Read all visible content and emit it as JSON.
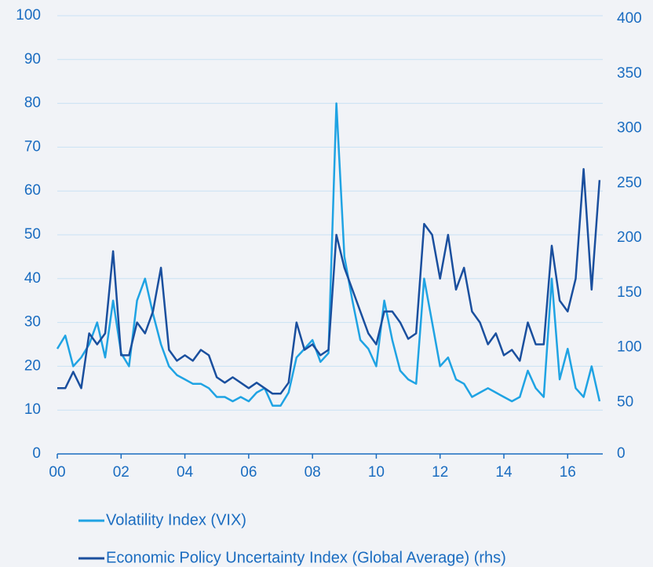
{
  "chart_data": {
    "type": "line",
    "x": [
      0,
      0.25,
      0.5,
      0.75,
      1,
      1.25,
      1.5,
      1.75,
      2,
      2.25,
      2.5,
      2.75,
      3,
      3.25,
      3.5,
      3.75,
      4,
      4.25,
      4.5,
      4.75,
      5,
      5.25,
      5.5,
      5.75,
      6,
      6.25,
      6.5,
      6.75,
      7,
      7.25,
      7.5,
      7.75,
      8,
      8.25,
      8.5,
      8.75,
      9,
      9.25,
      9.5,
      9.75,
      10,
      10.25,
      10.5,
      10.75,
      11,
      11.25,
      11.5,
      11.75,
      12,
      12.25,
      12.5,
      12.75,
      13,
      13.25,
      13.5,
      13.75,
      14,
      14.25,
      14.5,
      14.75,
      15,
      15.25,
      15.5,
      15.75,
      16,
      16.25,
      16.5,
      16.75,
      17
    ],
    "series": [
      {
        "name": "Volatility Index (VIX)",
        "color": "#1fa3e3",
        "values": [
          24,
          27,
          20,
          22,
          25,
          30,
          22,
          35,
          23,
          20,
          35,
          40,
          32,
          25,
          20,
          18,
          17,
          16,
          16,
          15,
          13,
          13,
          12,
          13,
          12,
          14,
          15,
          11,
          11,
          14,
          22,
          24,
          26,
          21,
          23,
          80,
          45,
          35,
          26,
          24,
          20,
          35,
          26,
          19,
          17,
          16,
          40,
          30,
          20,
          22,
          17,
          16,
          13,
          14,
          15,
          14,
          13,
          12,
          13,
          19,
          15,
          13,
          40,
          17,
          24,
          15,
          13,
          20,
          12
        ]
      },
      {
        "name": "Economic Policy Uncertainty Index (Global Average) (rhs)",
        "color": "#1a4f9e",
        "axis": "y2",
        "values": [
          60,
          60,
          75,
          60,
          110,
          100,
          110,
          185,
          90,
          90,
          120,
          110,
          130,
          170,
          95,
          85,
          90,
          85,
          95,
          90,
          70,
          65,
          70,
          65,
          60,
          65,
          60,
          55,
          55,
          65,
          120,
          95,
          100,
          90,
          95,
          200,
          170,
          150,
          130,
          110,
          100,
          130,
          130,
          120,
          105,
          110,
          210,
          200,
          160,
          200,
          150,
          170,
          130,
          120,
          100,
          110,
          90,
          95,
          85,
          120,
          100,
          100,
          190,
          140,
          130,
          160,
          260,
          150,
          250
        ]
      }
    ],
    "xlim": [
      0,
      17.1
    ],
    "xticks": [
      {
        "value": 0,
        "label": "00"
      },
      {
        "value": 2,
        "label": "02"
      },
      {
        "value": 4,
        "label": "04"
      },
      {
        "value": 6,
        "label": "06"
      },
      {
        "value": 8,
        "label": "08"
      },
      10,
      12,
      14,
      16
    ],
    "ylim": [
      0,
      100
    ],
    "yticks": [
      0,
      10,
      20,
      30,
      40,
      50,
      60,
      70,
      80,
      90,
      100
    ],
    "y2lim": [
      0,
      400
    ],
    "y2ticks": [
      0,
      50,
      100,
      150,
      200,
      250,
      300,
      350,
      400
    ],
    "grid": true
  }
}
